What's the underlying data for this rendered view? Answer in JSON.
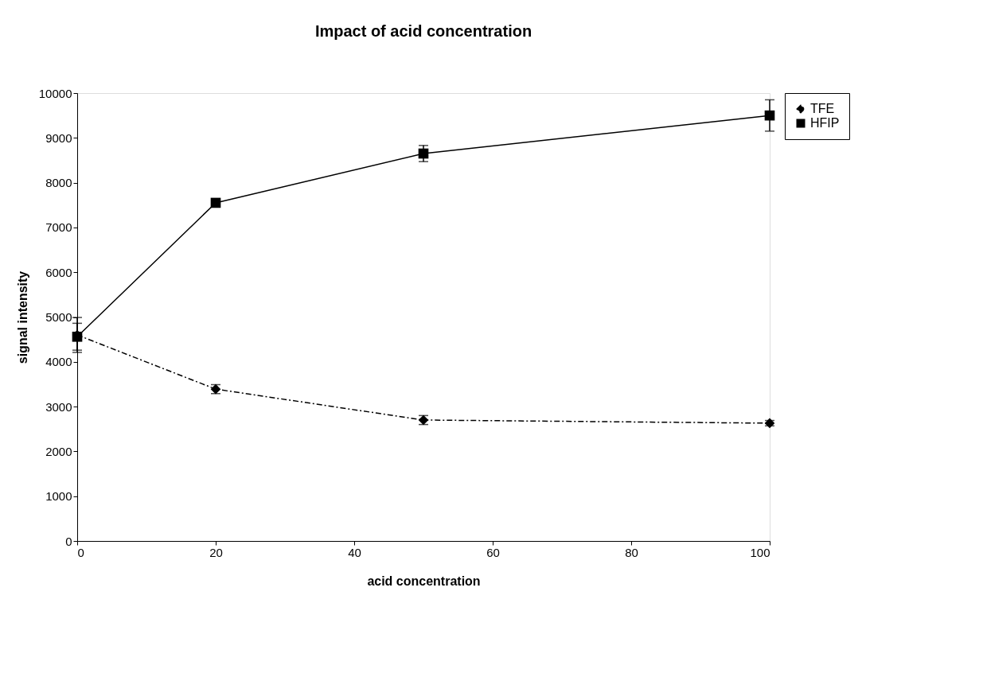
{
  "chart_data": {
    "type": "line",
    "title": "Impact of acid concentration",
    "xlabel": "acid concentration",
    "ylabel": "signal intensity",
    "x": [
      0,
      20,
      50,
      100
    ],
    "series": [
      {
        "name": "TFE",
        "color": "#000000",
        "values": [
          4600,
          3390,
          2700,
          2630
        ],
        "errors": [
          390,
          100,
          100,
          60
        ],
        "marker": "diamond",
        "line_style": "dashed"
      },
      {
        "name": "HFIP",
        "color": "#000000",
        "values": [
          4560,
          7550,
          8650,
          9500
        ],
        "errors": [
          300,
          80,
          180,
          350
        ],
        "marker": "square",
        "line_style": "solid"
      }
    ],
    "xlim": [
      0,
      100
    ],
    "xticks": [
      0,
      20,
      40,
      60,
      80,
      100
    ],
    "ylim": [
      0,
      10000
    ],
    "yticks": [
      0,
      1000,
      2000,
      3000,
      4000,
      5000,
      6000,
      7000,
      8000,
      9000,
      10000
    ],
    "grid": false,
    "legend": "right"
  }
}
